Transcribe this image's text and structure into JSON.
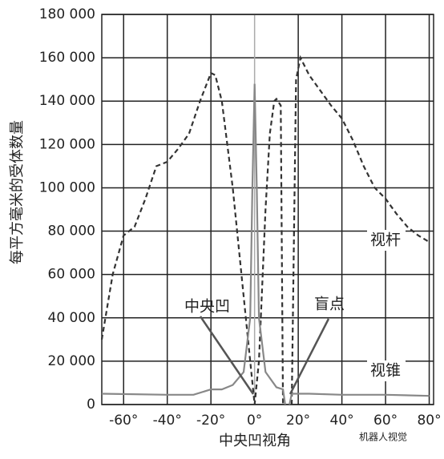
{
  "chart_data": {
    "type": "line",
    "x_label": "中央凹视角",
    "y_label": "每平方毫米的受体数量",
    "xlim": [
      -70,
      82
    ],
    "ylim": [
      0,
      180000
    ],
    "xticks": [
      {
        "value": -60,
        "label": "-60°"
      },
      {
        "value": -40,
        "label": "-40°"
      },
      {
        "value": -20,
        "label": "-20°"
      },
      {
        "value": 0,
        "label": "0°"
      },
      {
        "value": 20,
        "label": "20°"
      },
      {
        "value": 40,
        "label": "40°"
      },
      {
        "value": 60,
        "label": "60°"
      },
      {
        "value": 80,
        "label": "80°"
      }
    ],
    "yticks": [
      0,
      {
        "value": 20000,
        "label": "20 000"
      },
      {
        "value": 40000,
        "label": "40 000"
      },
      {
        "value": 60000,
        "label": "60 000"
      },
      {
        "value": 80000,
        "label": "80 000"
      },
      {
        "value": 100000,
        "label": "100 000"
      },
      {
        "value": 120000,
        "label": "120 000"
      },
      {
        "value": 140000,
        "label": "140 000"
      },
      {
        "value": 160000,
        "label": "160 000"
      },
      {
        "value": 180000,
        "label": "180 000"
      }
    ],
    "grid": true,
    "series": [
      {
        "name": "视杆",
        "color": "#333333",
        "style": "dashed",
        "x": [
          -70,
          -65,
          -60,
          -55,
          -50,
          -45,
          -40,
          -35,
          -30,
          -25,
          -20,
          -18,
          -15,
          -10,
          -5,
          -2,
          0,
          2,
          5,
          7,
          9,
          10,
          12,
          13,
          15,
          17,
          19,
          21,
          25,
          30,
          35,
          40,
          45,
          50,
          55,
          60,
          65,
          70,
          75,
          80
        ],
        "values": [
          30000,
          60000,
          78000,
          82000,
          95000,
          110000,
          112000,
          118000,
          125000,
          140000,
          153000,
          152000,
          140000,
          100000,
          50000,
          20000,
          0,
          20000,
          90000,
          125000,
          140000,
          141000,
          138000,
          0,
          null,
          0,
          150000,
          160000,
          152000,
          145000,
          138000,
          132000,
          122000,
          110000,
          100000,
          95000,
          88000,
          82000,
          78000,
          75000
        ]
      },
      {
        "name": "视锥",
        "color": "#888888",
        "style": "solid",
        "x": [
          -70,
          -40,
          -28,
          -20,
          -15,
          -10,
          -5,
          -2,
          -1,
          0,
          1,
          2,
          5,
          10,
          13,
          14,
          15,
          16,
          17,
          25,
          40,
          60,
          80
        ],
        "values": [
          5000,
          4500,
          4500,
          7000,
          7000,
          9000,
          15000,
          40000,
          100000,
          148000,
          100000,
          40000,
          15000,
          8000,
          7000,
          0,
          null,
          0,
          5000,
          5000,
          4500,
          4500,
          4000
        ]
      }
    ],
    "annotations": [
      "中央凹",
      "盲点"
    ],
    "watermark": "机器人视觉"
  }
}
